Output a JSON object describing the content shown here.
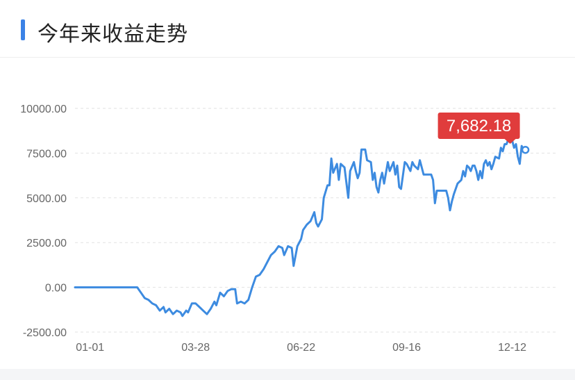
{
  "header": {
    "title": "今年来收益走势"
  },
  "colors": {
    "accent": "#3b82e6",
    "line": "#3d8be0",
    "tooltip_bg": "#e03c3c",
    "tooltip_text": "#ffffff",
    "axis_text": "#666666",
    "grid": "#e2e2e2"
  },
  "tooltip": {
    "value_label": "7,682.18"
  },
  "chart_data": {
    "type": "line",
    "ylim": [
      -2500,
      10000
    ],
    "y_ticks": [
      10000,
      7500,
      5000,
      2500,
      0,
      -2500
    ],
    "y_tick_labels": [
      "10000.00",
      "7500.00",
      "5000.00",
      "2500.00",
      "0.00",
      "-2500.00"
    ],
    "x_range": [
      0,
      255
    ],
    "x_ticks": [
      {
        "x": 8,
        "label": "01-01"
      },
      {
        "x": 64,
        "label": "03-28"
      },
      {
        "x": 120,
        "label": "06-22"
      },
      {
        "x": 176,
        "label": "09-16"
      },
      {
        "x": 232,
        "label": "12-12"
      }
    ],
    "grid": true,
    "series": [
      {
        "points": [
          [
            0,
            0
          ],
          [
            30,
            0
          ],
          [
            33,
            0
          ],
          [
            35,
            -300
          ],
          [
            37,
            -600
          ],
          [
            39,
            -700
          ],
          [
            41,
            -900
          ],
          [
            43,
            -1000
          ],
          [
            45,
            -1300
          ],
          [
            47,
            -1100
          ],
          [
            48,
            -1400
          ],
          [
            50,
            -1200
          ],
          [
            52,
            -1500
          ],
          [
            54,
            -1300
          ],
          [
            56,
            -1400
          ],
          [
            57,
            -1600
          ],
          [
            59,
            -1300
          ],
          [
            60,
            -1400
          ],
          [
            62,
            -900
          ],
          [
            64,
            -900
          ],
          [
            66,
            -1100
          ],
          [
            68,
            -1300
          ],
          [
            70,
            -1500
          ],
          [
            72,
            -1200
          ],
          [
            74,
            -800
          ],
          [
            75,
            -1000
          ],
          [
            77,
            -300
          ],
          [
            79,
            -500
          ],
          [
            81,
            -200
          ],
          [
            83,
            -100
          ],
          [
            85,
            -100
          ],
          [
            86,
            -900
          ],
          [
            88,
            -800
          ],
          [
            90,
            -900
          ],
          [
            92,
            -700
          ],
          [
            94,
            0
          ],
          [
            96,
            600
          ],
          [
            98,
            700
          ],
          [
            100,
            1000
          ],
          [
            102,
            1400
          ],
          [
            104,
            1800
          ],
          [
            106,
            2000
          ],
          [
            108,
            2300
          ],
          [
            110,
            2200
          ],
          [
            111,
            1800
          ],
          [
            113,
            2300
          ],
          [
            115,
            2200
          ],
          [
            116,
            1200
          ],
          [
            118,
            2300
          ],
          [
            120,
            2700
          ],
          [
            121,
            3200
          ],
          [
            123,
            3500
          ],
          [
            125,
            3700
          ],
          [
            127,
            4200
          ],
          [
            128,
            3600
          ],
          [
            129,
            3400
          ],
          [
            131,
            3800
          ],
          [
            132,
            5000
          ],
          [
            134,
            5700
          ],
          [
            135,
            5700
          ],
          [
            136,
            7200
          ],
          [
            137,
            6400
          ],
          [
            139,
            6900
          ],
          [
            140,
            6000
          ],
          [
            141,
            6900
          ],
          [
            143,
            6700
          ],
          [
            145,
            5000
          ],
          [
            146,
            6500
          ],
          [
            148,
            7000
          ],
          [
            149,
            6500
          ],
          [
            150,
            6100
          ],
          [
            151,
            6400
          ],
          [
            152,
            7700
          ],
          [
            154,
            7700
          ],
          [
            155,
            7100
          ],
          [
            157,
            7000
          ],
          [
            158,
            6000
          ],
          [
            159,
            6400
          ],
          [
            160,
            5600
          ],
          [
            161,
            5300
          ],
          [
            162,
            6000
          ],
          [
            163,
            6400
          ],
          [
            164,
            5800
          ],
          [
            166,
            7000
          ],
          [
            167,
            6500
          ],
          [
            169,
            7000
          ],
          [
            170,
            6300
          ],
          [
            171,
            6800
          ],
          [
            172,
            5600
          ],
          [
            173,
            5500
          ],
          [
            175,
            7000
          ],
          [
            176,
            6900
          ],
          [
            178,
            6500
          ],
          [
            179,
            7000
          ],
          [
            180,
            6800
          ],
          [
            182,
            6600
          ],
          [
            183,
            7100
          ],
          [
            185,
            6300
          ],
          [
            187,
            6300
          ],
          [
            189,
            6300
          ],
          [
            190,
            6000
          ],
          [
            191,
            4700
          ],
          [
            192,
            5400
          ],
          [
            194,
            5400
          ],
          [
            196,
            5400
          ],
          [
            197,
            5400
          ],
          [
            198,
            5000
          ],
          [
            199,
            4300
          ],
          [
            200,
            4800
          ],
          [
            201,
            5200
          ],
          [
            203,
            5800
          ],
          [
            205,
            6000
          ],
          [
            206,
            6500
          ],
          [
            207,
            6200
          ],
          [
            208,
            6800
          ],
          [
            209,
            6700
          ],
          [
            210,
            6500
          ],
          [
            211,
            6800
          ],
          [
            212,
            6800
          ],
          [
            213,
            6500
          ],
          [
            214,
            6000
          ],
          [
            215,
            6500
          ],
          [
            216,
            6100
          ],
          [
            217,
            6900
          ],
          [
            218,
            7100
          ],
          [
            219,
            6800
          ],
          [
            220,
            7000
          ],
          [
            221,
            6600
          ],
          [
            222,
            6900
          ],
          [
            223,
            7300
          ],
          [
            225,
            7200
          ],
          [
            226,
            7800
          ],
          [
            227,
            7600
          ],
          [
            228,
            8000
          ],
          [
            229,
            8000
          ],
          [
            230,
            8300
          ],
          [
            231,
            8100
          ],
          [
            232,
            8200
          ],
          [
            233,
            7800
          ],
          [
            234,
            8000
          ],
          [
            235,
            7300
          ],
          [
            236,
            6900
          ],
          [
            237,
            7900
          ],
          [
            238,
            7700
          ],
          [
            239,
            7682.18
          ]
        ]
      }
    ]
  }
}
